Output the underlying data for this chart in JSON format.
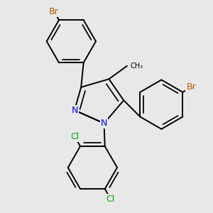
{
  "background_color": "#e8e8e8",
  "bond_color": "#000000",
  "bond_width": 1.4,
  "atom_colors": {
    "Br": "#b35a00",
    "Cl": "#00aa00",
    "N": "#0000ff"
  },
  "font_size_atoms": 9
}
